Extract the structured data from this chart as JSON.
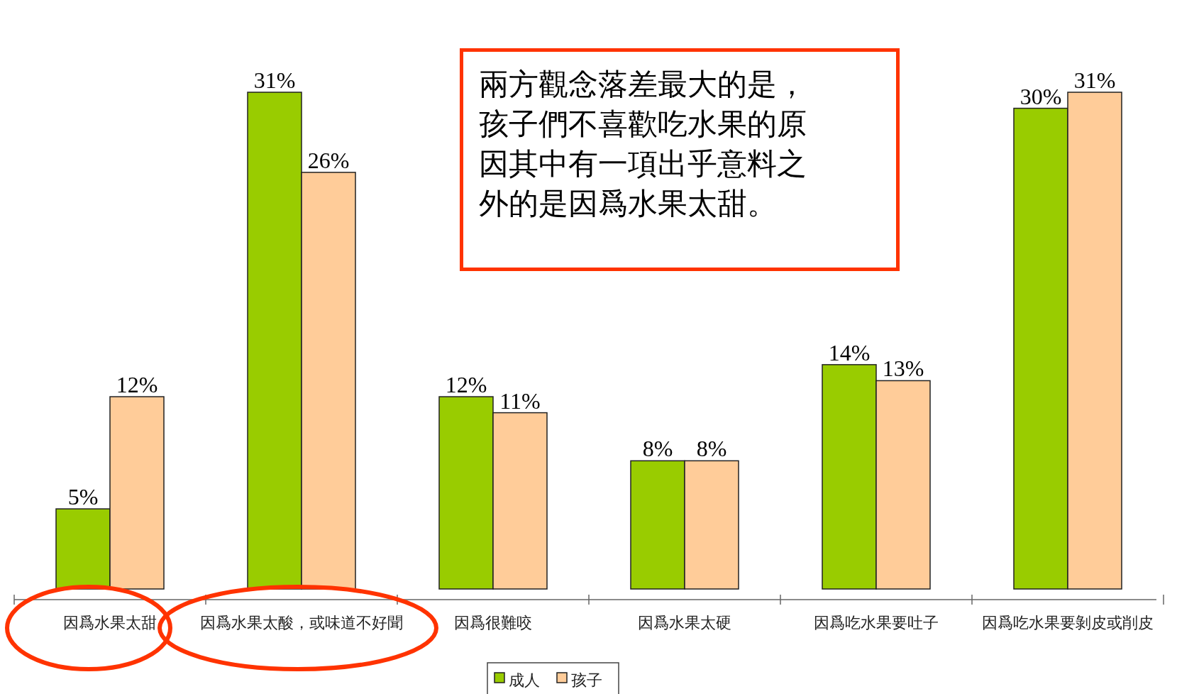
{
  "chart_data": {
    "type": "bar",
    "categories": [
      "因爲水果太甜",
      "因爲水果太酸，或味道不好聞",
      "因爲很難咬",
      "因爲水果太硬",
      "因爲吃水果要吐子",
      "因爲吃水果要剝皮或削皮"
    ],
    "series": [
      {
        "name": "成人",
        "color": "#99cc00",
        "values": [
          5,
          31,
          12,
          8,
          14,
          30
        ],
        "value_labels": [
          "5%",
          "31%",
          "12%",
          "8%",
          "14%",
          "30%"
        ]
      },
      {
        "name": "孩子",
        "color": "#ffcc99",
        "values": [
          12,
          26,
          11,
          8,
          13,
          31
        ],
        "value_labels": [
          "12%",
          "26%",
          "11%",
          "8%",
          "13%",
          "31%"
        ]
      }
    ],
    "annotations": [
      "兩方觀念落差最大的是，孩子們不喜歡吃水果的原因其中有一項出乎意料之外的是因爲水果太甜。"
    ],
    "legend": "bottom"
  }
}
